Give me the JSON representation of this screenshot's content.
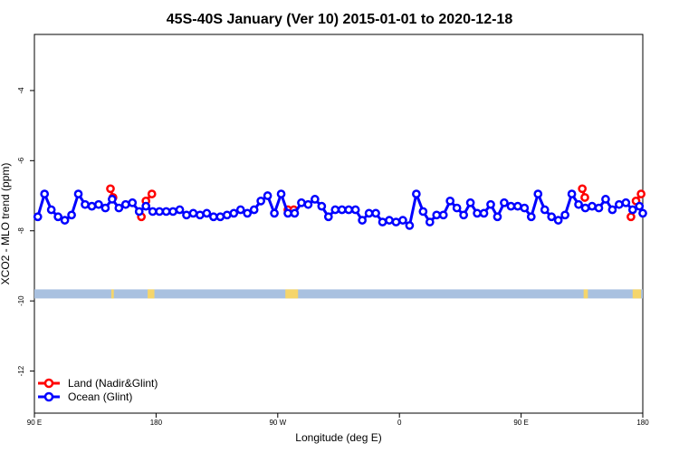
{
  "chart_data": {
    "type": "line",
    "title": "45S-40S January (Ver 10)   2015-01-01 to 2020-12-18",
    "xlabel": "Longitude (deg E)",
    "ylabel": "XCO2 - MLO trend (ppm)",
    "xlim": [
      90,
      450
    ],
    "ylim": [
      -13.2,
      -2.4
    ],
    "x_ticks": [
      {
        "value": 90,
        "label": "90 E"
      },
      {
        "value": 162,
        "label": "180"
      },
      {
        "value": 234,
        "label": "90 W"
      },
      {
        "value": 306,
        "label": "0"
      },
      {
        "value": 378,
        "label": "90 E"
      },
      {
        "value": 450,
        "label": "180"
      }
    ],
    "y_ticks": [
      -4,
      -6,
      -8,
      -10,
      -12
    ],
    "y_tick_labels": [
      "-4",
      "-6",
      "-8",
      "-10",
      "-12"
    ],
    "grid": false,
    "legend_position": "bottom-left",
    "series": [
      {
        "name": "Land (Nadir&Glint)",
        "color": "#ff0000",
        "segments": [
          [
            [
              135.0,
              -6.8
            ],
            [
              136.5,
              -7.05
            ]
          ],
          [
            [
              153.3,
              -7.6
            ]
          ],
          [
            [
              156.0,
              -7.15
            ],
            [
              159.5,
              -6.95
            ]
          ],
          [
            [
              240.0,
              -7.4
            ],
            [
              243.5,
              -7.4
            ]
          ],
          [
            [
              414.2,
              -6.8
            ],
            [
              415.7,
              -7.05
            ]
          ],
          [
            [
              443.0,
              -7.6
            ]
          ],
          [
            [
              446.0,
              -7.15
            ],
            [
              449.0,
              -6.95
            ]
          ]
        ]
      },
      {
        "name": "Ocean (Glint)",
        "color": "#0000ff",
        "points": [
          [
            92.0,
            -7.6
          ],
          [
            96.0,
            -6.95
          ],
          [
            100.0,
            -7.4
          ],
          [
            104.0,
            -7.6
          ],
          [
            108.0,
            -7.7
          ],
          [
            112.0,
            -7.55
          ],
          [
            116.0,
            -6.95
          ],
          [
            120.0,
            -7.25
          ],
          [
            124.0,
            -7.3
          ],
          [
            128.0,
            -7.25
          ],
          [
            132.0,
            -7.35
          ],
          [
            136.0,
            -7.1
          ],
          [
            140.0,
            -7.35
          ],
          [
            144.0,
            -7.25
          ],
          [
            148.0,
            -7.2
          ],
          [
            152.0,
            -7.45
          ],
          [
            156.0,
            -7.3
          ],
          [
            160.0,
            -7.45
          ],
          [
            164.0,
            -7.45
          ],
          [
            168.0,
            -7.45
          ],
          [
            172.0,
            -7.45
          ],
          [
            176.0,
            -7.4
          ],
          [
            180.0,
            -7.55
          ],
          [
            184.0,
            -7.5
          ],
          [
            188.0,
            -7.55
          ],
          [
            192.0,
            -7.5
          ],
          [
            196.0,
            -7.6
          ],
          [
            200.0,
            -7.6
          ],
          [
            204.0,
            -7.55
          ],
          [
            208.0,
            -7.5
          ],
          [
            212.0,
            -7.4
          ],
          [
            216.0,
            -7.5
          ],
          [
            220.0,
            -7.4
          ],
          [
            224.0,
            -7.15
          ],
          [
            228.0,
            -7.0
          ],
          [
            232.0,
            -7.5
          ],
          [
            236.0,
            -6.95
          ],
          [
            240.0,
            -7.5
          ],
          [
            244.0,
            -7.5
          ],
          [
            248.0,
            -7.2
          ],
          [
            252.0,
            -7.25
          ],
          [
            256.0,
            -7.1
          ],
          [
            260.0,
            -7.3
          ],
          [
            264.0,
            -7.6
          ],
          [
            268.0,
            -7.4
          ],
          [
            272.0,
            -7.4
          ],
          [
            276.0,
            -7.4
          ],
          [
            280.0,
            -7.4
          ],
          [
            284.0,
            -7.7
          ],
          [
            288.0,
            -7.5
          ],
          [
            292.0,
            -7.5
          ],
          [
            296.0,
            -7.75
          ],
          [
            300.0,
            -7.7
          ],
          [
            304.0,
            -7.75
          ],
          [
            308.0,
            -7.7
          ],
          [
            312.0,
            -7.85
          ],
          [
            316.0,
            -6.95
          ],
          [
            320.0,
            -7.45
          ],
          [
            324.0,
            -7.75
          ],
          [
            328.0,
            -7.55
          ],
          [
            332.0,
            -7.55
          ],
          [
            336.0,
            -7.15
          ],
          [
            340.0,
            -7.35
          ],
          [
            344.0,
            -7.55
          ],
          [
            348.0,
            -7.2
          ],
          [
            352.0,
            -7.5
          ],
          [
            356.0,
            -7.5
          ],
          [
            360.0,
            -7.25
          ],
          [
            364.0,
            -7.6
          ],
          [
            368.0,
            -7.2
          ],
          [
            372.0,
            -7.3
          ],
          [
            376.0,
            -7.3
          ],
          [
            380.0,
            -7.35
          ],
          [
            384.0,
            -7.6
          ],
          [
            388.0,
            -6.95
          ],
          [
            392.0,
            -7.4
          ],
          [
            396.0,
            -7.6
          ],
          [
            400.0,
            -7.7
          ],
          [
            404.0,
            -7.55
          ],
          [
            408.0,
            -6.95
          ],
          [
            412.0,
            -7.25
          ],
          [
            416.0,
            -7.35
          ],
          [
            420.0,
            -7.3
          ],
          [
            424.0,
            -7.35
          ],
          [
            428.0,
            -7.1
          ],
          [
            432.0,
            -7.4
          ],
          [
            436.0,
            -7.25
          ],
          [
            440.0,
            -7.2
          ],
          [
            444.0,
            -7.4
          ],
          [
            448.0,
            -7.3
          ],
          [
            450.0,
            -7.5
          ]
        ]
      }
    ],
    "land_ocean_band": {
      "y": -9.8,
      "ocean_color": "#a9c1e0",
      "land_color": "#f5d56b",
      "land_lon_ranges": [
        [
          135.5,
          137.0
        ],
        [
          157.0,
          161.0
        ],
        [
          238.5,
          246.0
        ],
        [
          415.0,
          417.5
        ],
        [
          444.0,
          449.0
        ]
      ]
    }
  }
}
